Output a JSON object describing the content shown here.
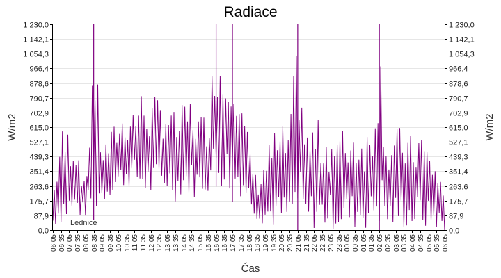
{
  "chart_data": {
    "type": "line",
    "title": "Radiace",
    "xlabel": "Čas",
    "ylabel_left": "W/m2",
    "ylabel_right": "W/m2",
    "station_label": "Lednice",
    "series_color": "#800080",
    "grid": true,
    "ylim": [
      0,
      1230
    ],
    "y_ticks": [
      "0,0",
      "87,9",
      "175,7",
      "263,6",
      "351,4",
      "439,3",
      "527,1",
      "615,0",
      "702,9",
      "790,7",
      "878,6",
      "966,4",
      "1 054,3",
      "1 142,1",
      "1 230,0"
    ],
    "x_ticks": [
      "06:05",
      "06:35",
      "07:05",
      "07:35",
      "08:05",
      "08:35",
      "09:05",
      "09:35",
      "10:05",
      "10:35",
      "11:05",
      "11:35",
      "12:05",
      "12:35",
      "13:05",
      "13:35",
      "14:05",
      "14:35",
      "15:05",
      "15:35",
      "16:05",
      "16:35",
      "17:05",
      "17:35",
      "18:05",
      "18:35",
      "19:05",
      "19:35",
      "20:05",
      "20:35",
      "21:05",
      "21:35",
      "22:05",
      "22:35",
      "23:05",
      "23:35",
      "00:05",
      "00:35",
      "01:05",
      "01:35",
      "02:05",
      "02:35",
      "03:05",
      "03:35",
      "04:05",
      "04:35",
      "05:05",
      "05:35",
      "06:05"
    ],
    "series": [
      {
        "x": [
          "06:05",
          "06:35",
          "07:05",
          "07:35",
          "08:05",
          "08:35",
          "09:05",
          "09:35",
          "10:05",
          "10:35",
          "11:05",
          "11:35",
          "12:05",
          "12:35",
          "13:05",
          "13:35",
          "14:05",
          "14:35",
          "15:05",
          "15:35",
          "16:05",
          "16:35",
          "17:05",
          "17:35",
          "18:05",
          "18:35",
          "19:05",
          "19:35",
          "20:05",
          "20:35",
          "21:05",
          "21:35",
          "22:05",
          "22:35",
          "23:05",
          "23:35",
          "00:05",
          "00:35",
          "01:05",
          "01:35",
          "02:05",
          "02:35",
          "03:05",
          "03:35",
          "04:05",
          "04:35",
          "05:05",
          "05:35",
          "06:05"
        ],
        "low": [
          20,
          30,
          40,
          60,
          80,
          60,
          150,
          200,
          220,
          260,
          240,
          200,
          180,
          200,
          220,
          170,
          210,
          190,
          200,
          220,
          260,
          240,
          170,
          200,
          150,
          60,
          25,
          5,
          0,
          0,
          0,
          0,
          0,
          0,
          0,
          0,
          0,
          0,
          0,
          0,
          0,
          0,
          0,
          0,
          0,
          0,
          0,
          0,
          0
        ],
        "high": [
          230,
          620,
          630,
          580,
          240,
          1230,
          520,
          580,
          700,
          720,
          780,
          860,
          790,
          820,
          800,
          700,
          760,
          820,
          700,
          720,
          1230,
          1010,
          1230,
          800,
          560,
          300,
          460,
          600,
          630,
          620,
          1230,
          600,
          680,
          640,
          620,
          600,
          640,
          650,
          620,
          640,
          1230,
          540,
          620,
          630,
          560,
          640,
          520,
          420,
          230
        ]
      }
    ]
  }
}
